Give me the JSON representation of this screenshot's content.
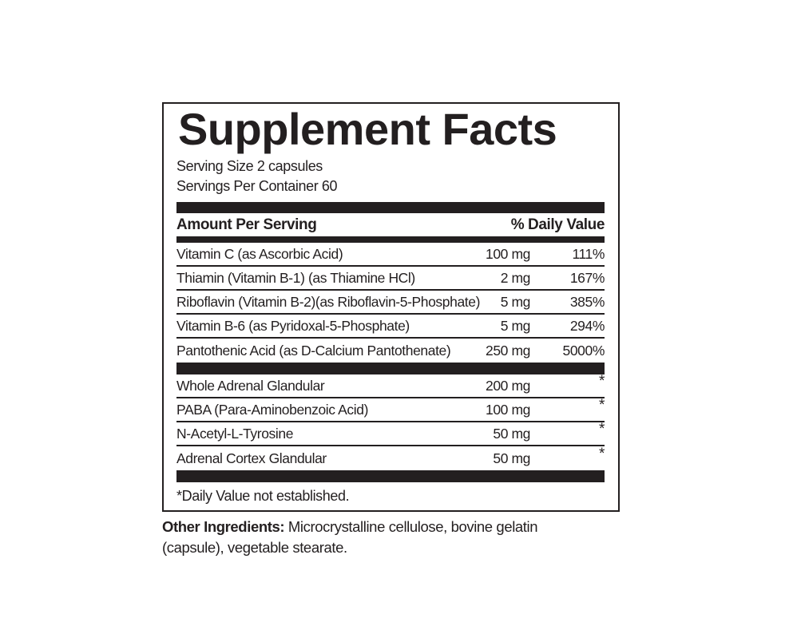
{
  "label": {
    "title": "Supplement Facts",
    "serving_size": "Serving Size 2 capsules",
    "servings_per_container": "Servings Per Container 60",
    "columns": {
      "left": "Amount Per Serving",
      "right": "% Daily Value"
    },
    "section1": [
      {
        "name": "Vitamin C (as Ascorbic Acid)",
        "amount": "100 mg",
        "dv": "111%"
      },
      {
        "name": "Thiamin (Vitamin B-1) (as Thiamine HCl)",
        "amount": "2 mg",
        "dv": "167%"
      },
      {
        "name": "Riboflavin (Vitamin B-2)(as Riboflavin-5-Phosphate)",
        "amount": "5 mg",
        "dv": "385%"
      },
      {
        "name": "Vitamin B-6 (as Pyridoxal-5-Phosphate)",
        "amount": "5 mg",
        "dv": "294%"
      },
      {
        "name": "Pantothenic Acid (as D-Calcium Pantothenate)",
        "amount": "250 mg",
        "dv": "5000%"
      }
    ],
    "section2": [
      {
        "name": "Whole Adrenal Glandular",
        "amount": "200 mg",
        "dv": "*"
      },
      {
        "name": "PABA (Para-Aminobenzoic Acid)",
        "amount": "100 mg",
        "dv": "*"
      },
      {
        "name": "N-Acetyl-L-Tyrosine",
        "amount": "50 mg",
        "dv": "*"
      },
      {
        "name": "Adrenal Cortex Glandular",
        "amount": "50 mg",
        "dv": "*"
      }
    ],
    "footnote": "*Daily Value not established."
  },
  "other_ingredients": {
    "label": "Other Ingredients:",
    "text": " Microcrystalline cellulose, bovine gelatin (capsule), vegetable stearate."
  },
  "colors": {
    "ink": "#231f20",
    "background": "#ffffff"
  }
}
